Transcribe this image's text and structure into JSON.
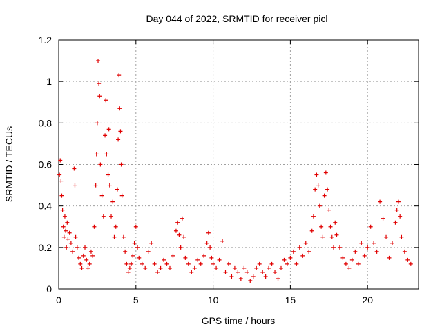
{
  "chart_data": {
    "type": "scatter",
    "title": "Day 044 of 2022, SRMTID for receiver picl",
    "xlabel": "GPS time / hours",
    "ylabel": "SRMTID / TECUs",
    "xlim": [
      0,
      23.3
    ],
    "ylim": [
      0,
      1.2
    ],
    "x_ticks": [
      0,
      5,
      10,
      15,
      20
    ],
    "x_tick_labels": [
      "0",
      "5",
      "10",
      "15",
      "20"
    ],
    "y_ticks": [
      0,
      0.2,
      0.4,
      0.6,
      0.8,
      1.0,
      1.2
    ],
    "y_tick_labels": [
      "0",
      "0.2",
      "0.4",
      "0.6",
      "0.8",
      "1",
      "1.2"
    ],
    "grid": true,
    "marker": "plus",
    "color": "#e00000",
    "series": [
      {
        "name": "SRMTID",
        "points": [
          [
            0.05,
            0.55
          ],
          [
            0.1,
            0.62
          ],
          [
            0.15,
            0.52
          ],
          [
            0.2,
            0.45
          ],
          [
            0.25,
            0.38
          ],
          [
            0.3,
            0.3
          ],
          [
            0.35,
            0.25
          ],
          [
            0.4,
            0.35
          ],
          [
            0.45,
            0.28
          ],
          [
            0.5,
            0.2
          ],
          [
            0.55,
            0.32
          ],
          [
            0.6,
            0.24
          ],
          [
            0.7,
            0.27
          ],
          [
            0.8,
            0.22
          ],
          [
            0.9,
            0.18
          ],
          [
            1.0,
            0.58
          ],
          [
            1.05,
            0.5
          ],
          [
            1.1,
            0.25
          ],
          [
            1.2,
            0.2
          ],
          [
            1.3,
            0.15
          ],
          [
            1.4,
            0.12
          ],
          [
            1.5,
            0.1
          ],
          [
            1.6,
            0.16
          ],
          [
            1.7,
            0.2
          ],
          [
            1.8,
            0.14
          ],
          [
            1.9,
            0.1
          ],
          [
            2.0,
            0.12
          ],
          [
            2.1,
            0.18
          ],
          [
            2.2,
            0.16
          ],
          [
            2.3,
            0.3
          ],
          [
            2.4,
            0.5
          ],
          [
            2.45,
            0.65
          ],
          [
            2.5,
            0.8
          ],
          [
            2.55,
            1.1
          ],
          [
            2.6,
            0.99
          ],
          [
            2.65,
            0.93
          ],
          [
            2.7,
            0.6
          ],
          [
            2.8,
            0.45
          ],
          [
            2.9,
            0.35
          ],
          [
            3.0,
            0.74
          ],
          [
            3.05,
            0.91
          ],
          [
            3.1,
            0.65
          ],
          [
            3.2,
            0.55
          ],
          [
            3.25,
            0.77
          ],
          [
            3.3,
            0.5
          ],
          [
            3.4,
            0.35
          ],
          [
            3.5,
            0.42
          ],
          [
            3.6,
            0.25
          ],
          [
            3.7,
            0.3
          ],
          [
            3.8,
            0.48
          ],
          [
            3.85,
            0.72
          ],
          [
            3.9,
            1.03
          ],
          [
            3.95,
            0.87
          ],
          [
            4.0,
            0.76
          ],
          [
            4.05,
            0.6
          ],
          [
            4.1,
            0.45
          ],
          [
            4.2,
            0.25
          ],
          [
            4.3,
            0.18
          ],
          [
            4.4,
            0.12
          ],
          [
            4.5,
            0.08
          ],
          [
            4.6,
            0.1
          ],
          [
            4.7,
            0.12
          ],
          [
            4.8,
            0.16
          ],
          [
            4.9,
            0.22
          ],
          [
            5.0,
            0.3
          ],
          [
            5.1,
            0.2
          ],
          [
            5.2,
            0.15
          ],
          [
            5.4,
            0.12
          ],
          [
            5.6,
            0.1
          ],
          [
            5.8,
            0.18
          ],
          [
            6.0,
            0.22
          ],
          [
            6.2,
            0.12
          ],
          [
            6.4,
            0.08
          ],
          [
            6.6,
            0.1
          ],
          [
            6.8,
            0.14
          ],
          [
            7.0,
            0.12
          ],
          [
            7.2,
            0.1
          ],
          [
            7.4,
            0.16
          ],
          [
            7.6,
            0.28
          ],
          [
            7.7,
            0.32
          ],
          [
            7.8,
            0.26
          ],
          [
            7.9,
            0.2
          ],
          [
            8.0,
            0.34
          ],
          [
            8.1,
            0.25
          ],
          [
            8.2,
            0.15
          ],
          [
            8.4,
            0.12
          ],
          [
            8.6,
            0.08
          ],
          [
            8.8,
            0.1
          ],
          [
            9.0,
            0.14
          ],
          [
            9.2,
            0.12
          ],
          [
            9.4,
            0.16
          ],
          [
            9.6,
            0.22
          ],
          [
            9.7,
            0.27
          ],
          [
            9.8,
            0.2
          ],
          [
            9.9,
            0.15
          ],
          [
            10.0,
            0.12
          ],
          [
            10.2,
            0.1
          ],
          [
            10.4,
            0.14
          ],
          [
            10.6,
            0.23
          ],
          [
            10.8,
            0.08
          ],
          [
            11.0,
            0.12
          ],
          [
            11.2,
            0.06
          ],
          [
            11.4,
            0.1
          ],
          [
            11.6,
            0.08
          ],
          [
            11.8,
            0.05
          ],
          [
            12.0,
            0.1
          ],
          [
            12.2,
            0.08
          ],
          [
            12.4,
            0.04
          ],
          [
            12.6,
            0.06
          ],
          [
            12.8,
            0.1
          ],
          [
            13.0,
            0.12
          ],
          [
            13.2,
            0.08
          ],
          [
            13.4,
            0.06
          ],
          [
            13.6,
            0.1
          ],
          [
            13.8,
            0.12
          ],
          [
            14.0,
            0.08
          ],
          [
            14.2,
            0.05
          ],
          [
            14.4,
            0.1
          ],
          [
            14.6,
            0.14
          ],
          [
            14.8,
            0.12
          ],
          [
            15.0,
            0.15
          ],
          [
            15.2,
            0.18
          ],
          [
            15.4,
            0.12
          ],
          [
            15.6,
            0.2
          ],
          [
            15.8,
            0.16
          ],
          [
            16.0,
            0.22
          ],
          [
            16.2,
            0.18
          ],
          [
            16.4,
            0.28
          ],
          [
            16.5,
            0.35
          ],
          [
            16.6,
            0.48
          ],
          [
            16.7,
            0.55
          ],
          [
            16.8,
            0.5
          ],
          [
            16.9,
            0.4
          ],
          [
            17.0,
            0.3
          ],
          [
            17.1,
            0.25
          ],
          [
            17.2,
            0.45
          ],
          [
            17.3,
            0.56
          ],
          [
            17.4,
            0.48
          ],
          [
            17.5,
            0.38
          ],
          [
            17.6,
            0.3
          ],
          [
            17.7,
            0.25
          ],
          [
            17.8,
            0.2
          ],
          [
            17.9,
            0.32
          ],
          [
            18.0,
            0.26
          ],
          [
            18.2,
            0.2
          ],
          [
            18.4,
            0.15
          ],
          [
            18.6,
            0.12
          ],
          [
            18.8,
            0.1
          ],
          [
            19.0,
            0.14
          ],
          [
            19.2,
            0.18
          ],
          [
            19.4,
            0.12
          ],
          [
            19.6,
            0.22
          ],
          [
            19.8,
            0.16
          ],
          [
            20.0,
            0.2
          ],
          [
            20.2,
            0.3
          ],
          [
            20.4,
            0.22
          ],
          [
            20.6,
            0.18
          ],
          [
            20.8,
            0.42
          ],
          [
            21.0,
            0.34
          ],
          [
            21.2,
            0.25
          ],
          [
            21.4,
            0.15
          ],
          [
            21.6,
            0.22
          ],
          [
            21.8,
            0.32
          ],
          [
            21.9,
            0.38
          ],
          [
            22.0,
            0.42
          ],
          [
            22.1,
            0.35
          ],
          [
            22.2,
            0.25
          ],
          [
            22.4,
            0.18
          ],
          [
            22.6,
            0.14
          ],
          [
            22.8,
            0.12
          ]
        ]
      }
    ]
  }
}
